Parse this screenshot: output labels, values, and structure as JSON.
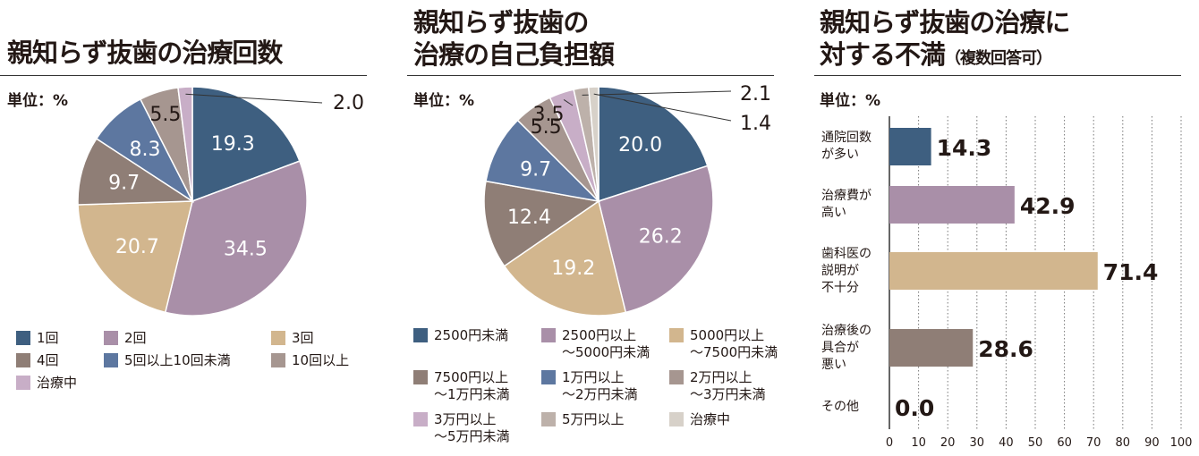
{
  "colors": {
    "c1": "#3e5f80",
    "c2": "#a98fa8",
    "c3": "#d2b68e",
    "c4": "#8f7e76",
    "c5": "#5d77a0",
    "c6": "#a69690",
    "c7": "#c8aec7",
    "c8": "#bdb1aa",
    "c9": "#d7d1c9"
  },
  "chart_data": [
    {
      "type": "pie",
      "title": "親知らず抜歯の治療回数",
      "unit": "単位：%",
      "slices": [
        {
          "label": "1回",
          "value": 19.3,
          "text": "19.3"
        },
        {
          "label": "2回",
          "value": 34.5,
          "text": "34.5"
        },
        {
          "label": "3回",
          "value": 20.7,
          "text": "20.7"
        },
        {
          "label": "4回",
          "value": 9.7,
          "text": "9.7"
        },
        {
          "label": "5回以上10回未満",
          "value": 8.3,
          "text": "8.3"
        },
        {
          "label": "10回以上",
          "value": 5.5,
          "text": "5.5"
        },
        {
          "label": "治療中",
          "value": 2.0,
          "text": "2.0"
        }
      ]
    },
    {
      "type": "pie",
      "title": [
        "親知らず抜歯の",
        "治療の自己負担額"
      ],
      "unit": "単位：%",
      "slices": [
        {
          "label": [
            "2500円未満"
          ],
          "value": 20.0,
          "text": "20.0"
        },
        {
          "label": [
            "2500円以上",
            "～5000円未満"
          ],
          "value": 26.2,
          "text": "26.2"
        },
        {
          "label": [
            "5000円以上",
            "～7500円未満"
          ],
          "value": 19.2,
          "text": "19.2"
        },
        {
          "label": [
            "7500円以上",
            "～1万円未満"
          ],
          "value": 12.4,
          "text": "12.4"
        },
        {
          "label": [
            "1万円以上",
            "～2万円未満"
          ],
          "value": 9.7,
          "text": "9.7"
        },
        {
          "label": [
            "2万円以上",
            "～3万円未満"
          ],
          "value": 5.5,
          "text": "5.5"
        },
        {
          "label": [
            "3万円以上",
            "～5万円未満"
          ],
          "value": 3.5,
          "text": "3.5"
        },
        {
          "label": [
            "5万円以上"
          ],
          "value": 2.1,
          "text": "2.1"
        },
        {
          "label": [
            "治療中"
          ],
          "value": 1.4,
          "text": "1.4"
        }
      ]
    },
    {
      "type": "bar",
      "orientation": "horizontal",
      "title": [
        "親知らず抜歯の治療に",
        "対する不満"
      ],
      "subtitle": "（複数回答可）",
      "unit": "単位：%",
      "categories": [
        [
          "通院回数",
          "が多い"
        ],
        [
          "治療費が",
          "高い"
        ],
        [
          "歯科医の",
          "説明が",
          "不十分"
        ],
        [
          "治療後の",
          "具合が",
          "悪い"
        ],
        [
          "その他"
        ]
      ],
      "values": [
        14.3,
        42.9,
        71.4,
        28.6,
        0.0
      ],
      "labels": [
        "14.3",
        "42.9",
        "71.4",
        "28.6",
        "0.0"
      ],
      "xlim": [
        0,
        100
      ],
      "xticks": [
        "0",
        "10",
        "20",
        "30",
        "40",
        "50",
        "60",
        "70",
        "80",
        "90",
        "100"
      ],
      "grid": "vertical-dotted"
    }
  ]
}
